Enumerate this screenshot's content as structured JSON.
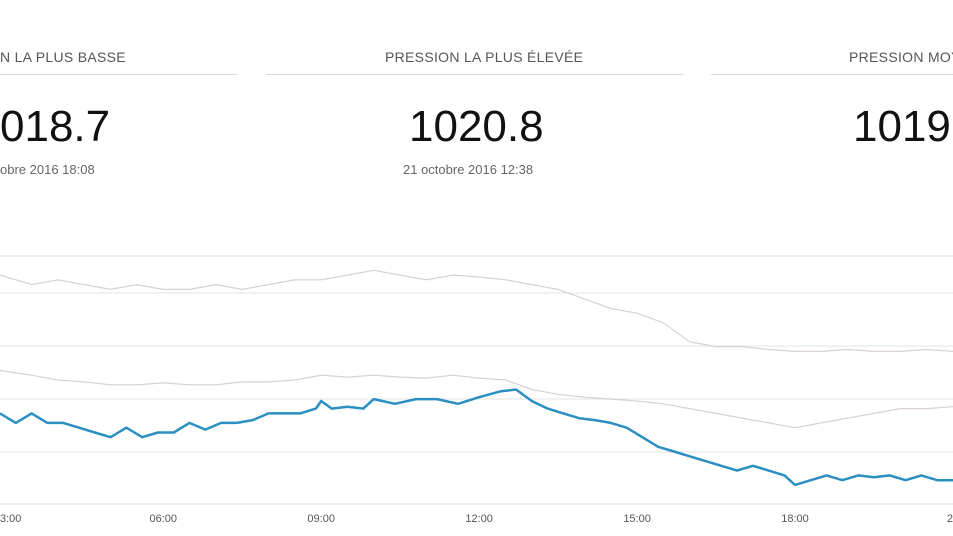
{
  "stats": [
    {
      "label": "N LA PLUS BASSE",
      "value": "018.7",
      "date": "obre 2016 18:08"
    },
    {
      "label": "PRESSION LA PLUS ÉLEVÉE",
      "value": "1020.8",
      "date": "21 octobre 2016 12:38"
    },
    {
      "label": "PRESSION MOY",
      "value": "1019",
      "date": ""
    }
  ],
  "colors": {
    "main_line": "#2a8fc1",
    "faint_line": "#d9cfd4",
    "grid": "#e3e3e3"
  },
  "chart_data": {
    "type": "line",
    "xlabel": "",
    "ylabel": "",
    "x_ticks": [
      "3:00",
      "06:00",
      "09:00",
      "12:00",
      "15:00",
      "18:00",
      "2"
    ],
    "x_tick_hours": [
      3,
      6,
      9,
      12,
      15,
      18,
      21
    ],
    "x_range_hours": [
      2.9,
      21.0
    ],
    "y_range": [
      1018.6,
      1021.2
    ],
    "grid": true,
    "series": [
      {
        "role": "upper",
        "x": [
          2.9,
          3.5,
          4.0,
          4.5,
          5.0,
          5.5,
          6.0,
          6.5,
          7.0,
          7.5,
          8.0,
          8.5,
          9.0,
          9.5,
          10.0,
          10.5,
          11.0,
          11.5,
          12.0,
          12.5,
          13.0,
          13.5,
          14.0,
          14.5,
          15.0,
          15.5,
          16.0,
          16.5,
          17.0,
          17.5,
          18.0,
          18.5,
          19.0,
          19.5,
          20.0,
          20.5,
          21.0
        ],
        "y": [
          1021.0,
          1020.9,
          1020.95,
          1020.9,
          1020.85,
          1020.9,
          1020.85,
          1020.85,
          1020.9,
          1020.85,
          1020.9,
          1020.95,
          1020.95,
          1021.0,
          1021.05,
          1021.0,
          1020.95,
          1021.0,
          1020.98,
          1020.95,
          1020.9,
          1020.85,
          1020.75,
          1020.65,
          1020.6,
          1020.5,
          1020.3,
          1020.25,
          1020.25,
          1020.22,
          1020.2,
          1020.2,
          1020.22,
          1020.2,
          1020.2,
          1020.22,
          1020.2
        ]
      },
      {
        "role": "lower",
        "x": [
          2.9,
          3.5,
          4.0,
          4.5,
          5.0,
          5.5,
          6.0,
          6.5,
          7.0,
          7.5,
          8.0,
          8.5,
          9.0,
          9.5,
          10.0,
          10.5,
          11.0,
          11.5,
          12.0,
          12.5,
          13.0,
          13.5,
          14.0,
          14.5,
          15.0,
          15.5,
          16.0,
          16.5,
          17.0,
          17.5,
          18.0,
          18.5,
          19.0,
          19.5,
          20.0,
          20.5,
          21.0
        ],
        "y": [
          1020.0,
          1019.95,
          1019.9,
          1019.88,
          1019.85,
          1019.85,
          1019.87,
          1019.85,
          1019.85,
          1019.88,
          1019.88,
          1019.9,
          1019.95,
          1019.93,
          1019.95,
          1019.93,
          1019.92,
          1019.95,
          1019.92,
          1019.9,
          1019.8,
          1019.75,
          1019.72,
          1019.7,
          1019.68,
          1019.65,
          1019.6,
          1019.55,
          1019.5,
          1019.45,
          1019.4,
          1019.45,
          1019.5,
          1019.55,
          1019.6,
          1019.6,
          1019.62
        ]
      },
      {
        "role": "main",
        "x": [
          2.9,
          3.2,
          3.5,
          3.8,
          4.1,
          4.4,
          4.7,
          5.0,
          5.3,
          5.6,
          5.9,
          6.2,
          6.5,
          6.8,
          7.1,
          7.4,
          7.7,
          8.0,
          8.3,
          8.6,
          8.9,
          9.0,
          9.2,
          9.5,
          9.8,
          10.0,
          10.4,
          10.8,
          11.2,
          11.6,
          12.0,
          12.4,
          12.7,
          13.0,
          13.3,
          13.6,
          13.9,
          14.2,
          14.5,
          14.8,
          15.1,
          15.4,
          15.7,
          16.0,
          16.3,
          16.6,
          16.9,
          17.2,
          17.5,
          17.8,
          18.0,
          18.3,
          18.6,
          18.9,
          19.2,
          19.5,
          19.8,
          20.1,
          20.4,
          20.7,
          21.0
        ],
        "y": [
          1019.55,
          1019.45,
          1019.55,
          1019.45,
          1019.45,
          1019.4,
          1019.35,
          1019.3,
          1019.4,
          1019.3,
          1019.35,
          1019.35,
          1019.45,
          1019.38,
          1019.45,
          1019.45,
          1019.48,
          1019.55,
          1019.55,
          1019.55,
          1019.6,
          1019.68,
          1019.6,
          1019.62,
          1019.6,
          1019.7,
          1019.65,
          1019.7,
          1019.7,
          1019.65,
          1019.72,
          1019.78,
          1019.8,
          1019.68,
          1019.6,
          1019.55,
          1019.5,
          1019.48,
          1019.45,
          1019.4,
          1019.3,
          1019.2,
          1019.15,
          1019.1,
          1019.05,
          1019.0,
          1018.95,
          1019.0,
          1018.95,
          1018.9,
          1018.8,
          1018.85,
          1018.9,
          1018.85,
          1018.9,
          1018.88,
          1018.9,
          1018.85,
          1018.9,
          1018.85,
          1018.85
        ]
      }
    ]
  }
}
